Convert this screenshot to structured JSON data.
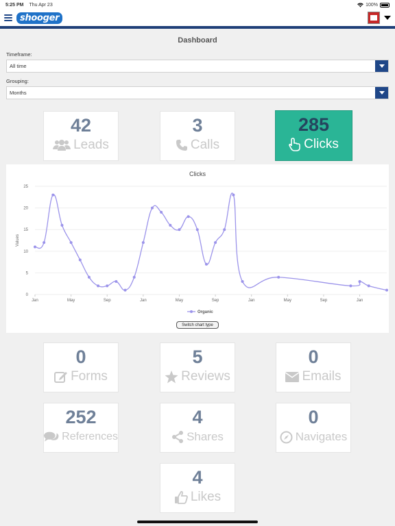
{
  "status_bar": {
    "time": "5:25 PM",
    "date": "Thu Apr 23",
    "battery": "100%"
  },
  "header": {
    "logo_text": "shooger"
  },
  "page": {
    "title": "Dashboard"
  },
  "filters": {
    "timeframe": {
      "label": "Timeframe:",
      "value": "All time"
    },
    "grouping": {
      "label": "Grouping:",
      "value": "Months"
    }
  },
  "top_tiles": [
    {
      "count": "42",
      "label": "Leads",
      "icon": "users-icon",
      "active": false
    },
    {
      "count": "3",
      "label": "Calls",
      "icon": "phone-icon",
      "active": false
    },
    {
      "count": "285",
      "label": "Clicks",
      "icon": "pointer-icon",
      "active": true
    }
  ],
  "bottom_tiles": [
    {
      "count": "0",
      "label": "Forms",
      "icon": "edit-icon"
    },
    {
      "count": "5",
      "label": "Reviews",
      "icon": "star-icon"
    },
    {
      "count": "0",
      "label": "Emails",
      "icon": "envelope-icon"
    },
    {
      "count": "252",
      "label": "References",
      "icon": "comments-icon"
    },
    {
      "count": "4",
      "label": "Shares",
      "icon": "share-icon"
    },
    {
      "count": "0",
      "label": "Navigates",
      "icon": "compass-icon"
    },
    {
      "count": "4",
      "label": "Likes",
      "icon": "thumbs-up-icon"
    }
  ],
  "colors": {
    "accent": "#1f4788",
    "active_tile": "#2ab596",
    "series_line": "#9b93ea"
  },
  "chart_data": {
    "type": "line",
    "title": "Clicks",
    "ylabel": "Values",
    "ylim": [
      0,
      25
    ],
    "y_ticks": [
      "0",
      "5",
      "10",
      "15",
      "20",
      "25"
    ],
    "x_ticks": [
      "Jan",
      "May",
      "Sep",
      "Jan",
      "May",
      "Sep",
      "Jan",
      "May",
      "Sep",
      "Jan"
    ],
    "x_tick_months": [
      0,
      4,
      8,
      12,
      16,
      20,
      24,
      28,
      32,
      36
    ],
    "x_max_month": 39,
    "series": [
      {
        "name": "Organic",
        "points": [
          [
            0,
            11
          ],
          [
            1,
            12
          ],
          [
            2,
            23
          ],
          [
            3,
            16
          ],
          [
            4,
            12
          ],
          [
            5,
            8
          ],
          [
            6,
            4
          ],
          [
            7,
            2
          ],
          [
            8,
            2
          ],
          [
            9,
            3
          ],
          [
            10,
            1
          ],
          [
            11,
            4
          ],
          [
            12,
            12
          ],
          [
            13,
            20
          ],
          [
            14,
            19
          ],
          [
            15,
            16
          ],
          [
            16,
            15
          ],
          [
            17,
            18
          ],
          [
            18,
            15
          ],
          [
            19,
            7
          ],
          [
            20,
            12
          ],
          [
            21,
            15
          ],
          [
            22,
            23
          ],
          [
            23,
            3
          ],
          [
            27,
            4
          ],
          [
            35,
            2
          ],
          [
            36,
            3
          ],
          [
            37,
            2
          ],
          [
            39,
            1
          ]
        ]
      }
    ],
    "legend": "bottom",
    "switch_label": "Switch chart type"
  }
}
